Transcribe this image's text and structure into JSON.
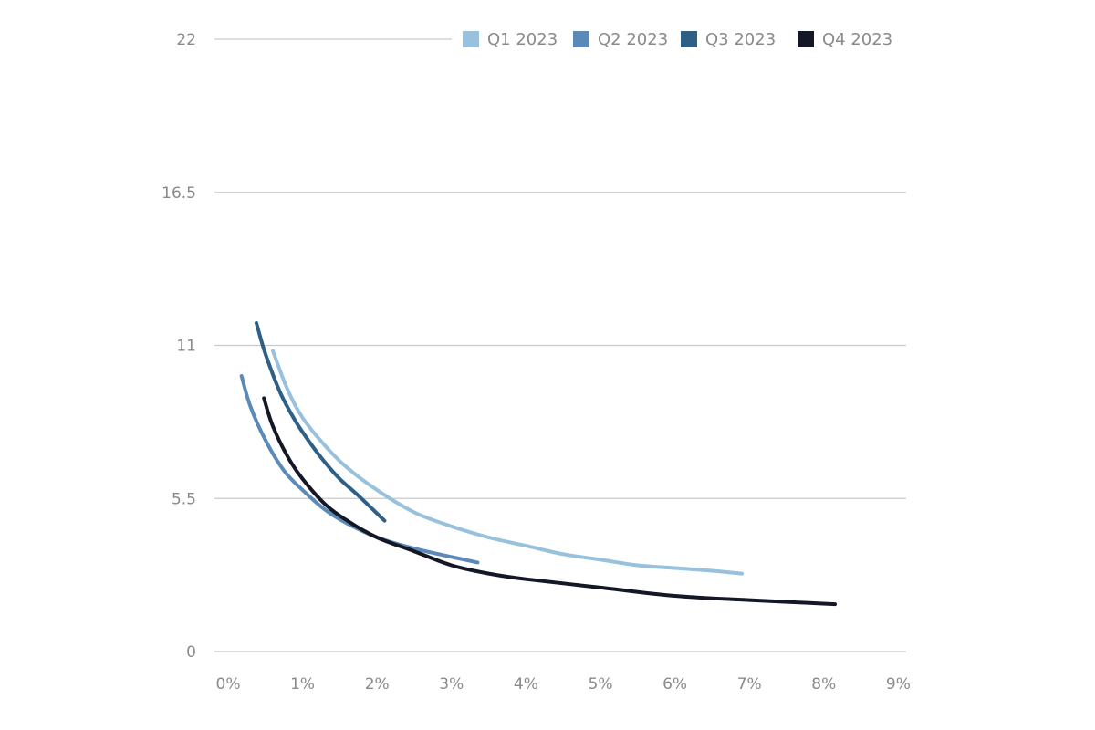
{
  "chart_data": {
    "type": "line",
    "title": "",
    "xlabel": "",
    "ylabel": "",
    "x_ticks": [
      "0%",
      "1%",
      "2%",
      "3%",
      "4%",
      "5%",
      "6%",
      "7%",
      "8%",
      "9%"
    ],
    "y_ticks": [
      "0",
      "5.5",
      "11",
      "16.5",
      "22"
    ],
    "xlim": [
      0,
      9
    ],
    "ylim": [
      0,
      22
    ],
    "grid": "horizontal",
    "legend_position": "top-right",
    "series": [
      {
        "name": "Q1 2023",
        "color": "#97c1dd",
        "points": [
          [
            0.6,
            10.8
          ],
          [
            0.8,
            9.4
          ],
          [
            1.0,
            8.4
          ],
          [
            1.3,
            7.4
          ],
          [
            1.6,
            6.6
          ],
          [
            2.0,
            5.8
          ],
          [
            2.5,
            5.0
          ],
          [
            3.0,
            4.5
          ],
          [
            3.5,
            4.1
          ],
          [
            4.0,
            3.8
          ],
          [
            4.5,
            3.5
          ],
          [
            5.0,
            3.3
          ],
          [
            5.5,
            3.1
          ],
          [
            6.0,
            3.0
          ],
          [
            6.5,
            2.9
          ],
          [
            6.9,
            2.8
          ]
        ]
      },
      {
        "name": "Q2 2023",
        "color": "#5b8ab8",
        "points": [
          [
            0.18,
            9.9
          ],
          [
            0.3,
            8.8
          ],
          [
            0.5,
            7.6
          ],
          [
            0.75,
            6.5
          ],
          [
            1.0,
            5.8
          ],
          [
            1.3,
            5.1
          ],
          [
            1.6,
            4.6
          ],
          [
            2.0,
            4.1
          ],
          [
            2.5,
            3.7
          ],
          [
            3.0,
            3.4
          ],
          [
            3.35,
            3.2
          ]
        ]
      },
      {
        "name": "Q3 2023",
        "color": "#2e5f86",
        "points": [
          [
            0.38,
            11.8
          ],
          [
            0.5,
            10.7
          ],
          [
            0.7,
            9.3
          ],
          [
            0.9,
            8.3
          ],
          [
            1.1,
            7.5
          ],
          [
            1.3,
            6.8
          ],
          [
            1.5,
            6.2
          ],
          [
            1.75,
            5.6
          ],
          [
            2.1,
            4.7
          ]
        ]
      },
      {
        "name": "Q4 2023",
        "color": "#141726",
        "points": [
          [
            0.48,
            9.1
          ],
          [
            0.6,
            8.1
          ],
          [
            0.8,
            7.0
          ],
          [
            1.0,
            6.2
          ],
          [
            1.3,
            5.3
          ],
          [
            1.6,
            4.7
          ],
          [
            2.0,
            4.1
          ],
          [
            2.5,
            3.6
          ],
          [
            3.0,
            3.1
          ],
          [
            3.5,
            2.8
          ],
          [
            4.0,
            2.6
          ],
          [
            5.0,
            2.3
          ],
          [
            6.0,
            2.0
          ],
          [
            7.0,
            1.85
          ],
          [
            8.15,
            1.7
          ]
        ]
      }
    ]
  }
}
